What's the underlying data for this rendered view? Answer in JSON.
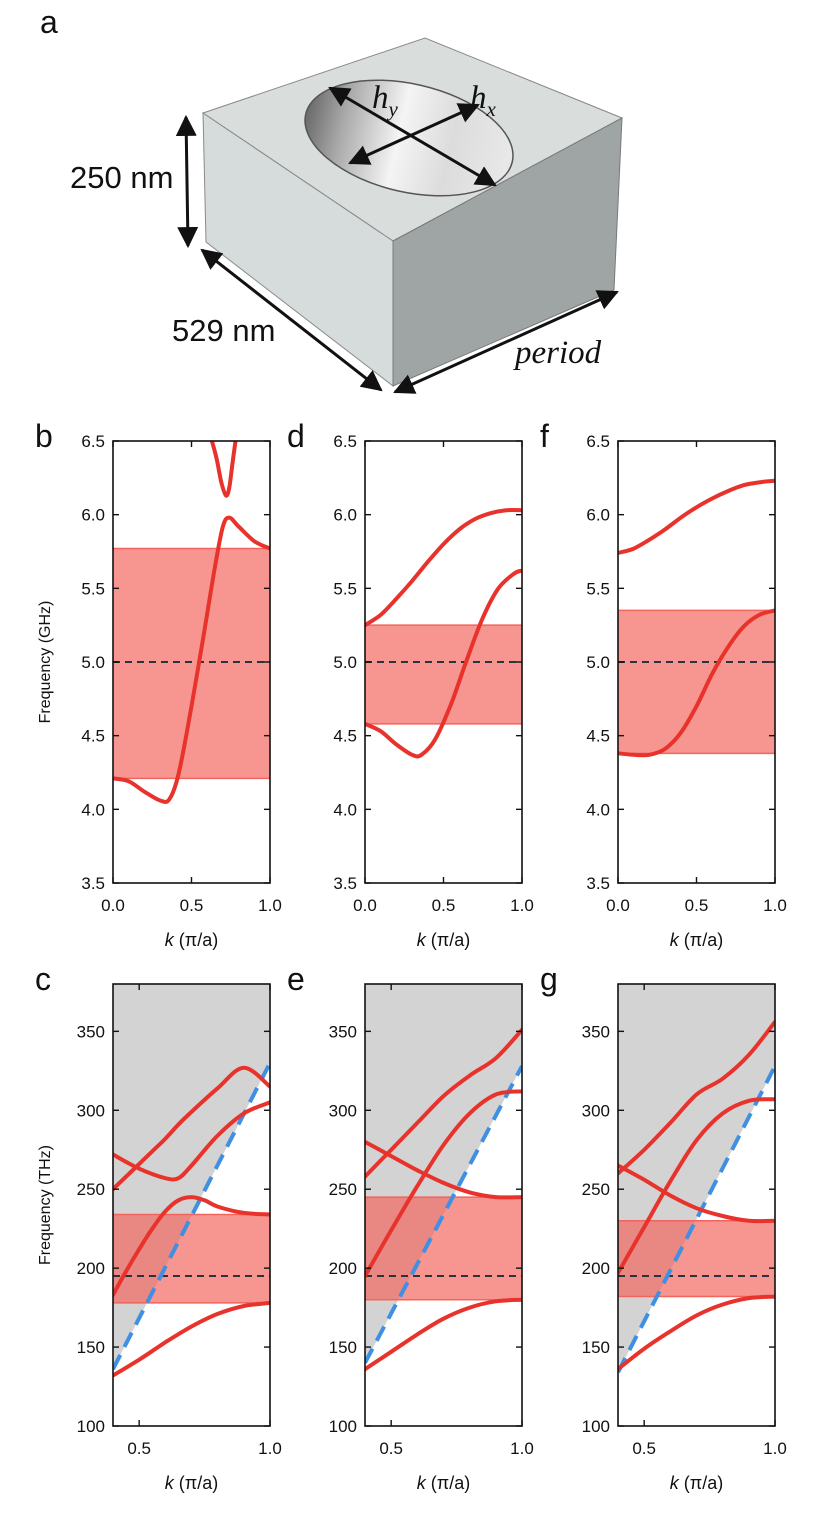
{
  "figure": {
    "panel_a": {
      "letter": "a",
      "height_label": "250 nm",
      "width_label": "529 nm",
      "period_label": "period",
      "hy_label": "h",
      "hy_sub": "y",
      "hx_label": "h",
      "hx_sub": "x"
    }
  },
  "colors": {
    "band_line": "#e8332c",
    "band_fill": "#f3645c",
    "light_line": "#3f8fe3",
    "light_cone": "#d3d3d3",
    "dashed_ref": "#2b3340"
  },
  "chart_data": [
    {
      "id": "b",
      "letter": "b",
      "type": "line",
      "ylabel": "Frequency (GHz)",
      "xlabel": "k (π/a)",
      "xlim": [
        0,
        1
      ],
      "ylim": [
        3.5,
        6.5
      ],
      "xticks": [
        "0.0",
        "0.5",
        "1.0"
      ],
      "yticks": [
        "3.5",
        "4.0",
        "4.5",
        "5.0",
        "5.5",
        "6.0",
        "6.5"
      ],
      "ytick_values": [
        3.5,
        4.0,
        4.5,
        5.0,
        5.5,
        6.0,
        6.5
      ],
      "xtick_values": [
        0,
        0.5,
        1.0
      ],
      "band_gap": [
        4.21,
        5.77
      ],
      "dashed_y": 5.0,
      "series": [
        {
          "name": "band-1",
          "x": [
            0,
            0.1,
            0.2,
            0.3,
            0.36,
            0.42,
            0.5,
            0.58,
            0.65,
            0.7,
            0.74,
            0.8,
            0.9,
            1.0
          ],
          "y": [
            4.21,
            4.19,
            4.12,
            4.06,
            4.07,
            4.25,
            4.7,
            5.2,
            5.65,
            5.92,
            5.98,
            5.92,
            5.82,
            5.77
          ]
        },
        {
          "name": "band-2",
          "x": [
            0.63,
            0.66,
            0.69,
            0.72,
            0.74,
            0.76,
            0.78
          ],
          "y": [
            6.5,
            6.38,
            6.22,
            6.13,
            6.18,
            6.34,
            6.5
          ]
        }
      ]
    },
    {
      "id": "d",
      "letter": "d",
      "type": "line",
      "ylabel": "",
      "xlabel": "k (π/a)",
      "xlim": [
        0,
        1
      ],
      "ylim": [
        3.5,
        6.5
      ],
      "xticks": [
        "0.0",
        "0.5",
        "1.0"
      ],
      "yticks": [
        "3.5",
        "4.0",
        "4.5",
        "5.0",
        "5.5",
        "6.0",
        "6.5"
      ],
      "ytick_values": [
        3.5,
        4.0,
        4.5,
        5.0,
        5.5,
        6.0,
        6.5
      ],
      "xtick_values": [
        0,
        0.5,
        1.0
      ],
      "band_gap": [
        4.58,
        5.25
      ],
      "dashed_y": 5.0,
      "series": [
        {
          "name": "band-1",
          "x": [
            0,
            0.1,
            0.2,
            0.3,
            0.36,
            0.45,
            0.55,
            0.65,
            0.75,
            0.85,
            0.95,
            1.0
          ],
          "y": [
            4.58,
            4.53,
            4.44,
            4.37,
            4.37,
            4.48,
            4.72,
            5.02,
            5.3,
            5.5,
            5.6,
            5.62
          ]
        },
        {
          "name": "band-2",
          "x": [
            0,
            0.1,
            0.2,
            0.3,
            0.4,
            0.5,
            0.6,
            0.7,
            0.8,
            0.9,
            1.0
          ],
          "y": [
            5.25,
            5.32,
            5.43,
            5.55,
            5.68,
            5.8,
            5.9,
            5.97,
            6.01,
            6.03,
            6.03
          ]
        }
      ]
    },
    {
      "id": "f",
      "letter": "f",
      "type": "line",
      "ylabel": "",
      "xlabel": "k (π/a)",
      "xlim": [
        0,
        1
      ],
      "ylim": [
        3.5,
        6.5
      ],
      "xticks": [
        "0.0",
        "0.5",
        "1.0"
      ],
      "yticks": [
        "3.5",
        "4.0",
        "4.5",
        "5.0",
        "5.5",
        "6.0",
        "6.5"
      ],
      "ytick_values": [
        3.5,
        4.0,
        4.5,
        5.0,
        5.5,
        6.0,
        6.5
      ],
      "xtick_values": [
        0,
        0.5,
        1.0
      ],
      "band_gap": [
        4.38,
        5.35
      ],
      "dashed_y": 5.0,
      "series": [
        {
          "name": "band-1",
          "x": [
            0,
            0.1,
            0.2,
            0.3,
            0.4,
            0.5,
            0.6,
            0.7,
            0.8,
            0.9,
            1.0
          ],
          "y": [
            4.38,
            4.37,
            4.37,
            4.41,
            4.52,
            4.7,
            4.92,
            5.1,
            5.24,
            5.32,
            5.35
          ]
        },
        {
          "name": "band-2",
          "x": [
            0,
            0.1,
            0.2,
            0.3,
            0.4,
            0.5,
            0.6,
            0.7,
            0.8,
            0.9,
            1.0
          ],
          "y": [
            5.74,
            5.77,
            5.83,
            5.9,
            5.98,
            6.05,
            6.11,
            6.16,
            6.2,
            6.22,
            6.23
          ]
        }
      ]
    },
    {
      "id": "c",
      "letter": "c",
      "type": "line",
      "ylabel": "Frequency (THz)",
      "xlabel": "k (π/a)",
      "xlim": [
        0.4,
        1
      ],
      "ylim": [
        100,
        380
      ],
      "xticks": [
        "0.5",
        "1.0"
      ],
      "yticks": [
        "100",
        "150",
        "200",
        "250",
        "300",
        "350"
      ],
      "ytick_values": [
        100,
        150,
        200,
        250,
        300,
        350
      ],
      "xtick_values": [
        0.5,
        1.0
      ],
      "band_gap": [
        178,
        234
      ],
      "dashed_y": 195,
      "light_line": {
        "x": [
          0.4,
          1.0
        ],
        "y": [
          136,
          330
        ]
      },
      "series": [
        {
          "name": "band-1",
          "x": [
            0.4,
            0.5,
            0.6,
            0.7,
            0.8,
            0.9,
            1.0
          ],
          "y": [
            132,
            142,
            153,
            163,
            171,
            176,
            178
          ]
        },
        {
          "name": "band-2",
          "x": [
            0.4,
            0.45,
            0.5,
            0.55,
            0.6,
            0.65,
            0.7,
            0.75,
            0.8,
            0.9,
            1.0
          ],
          "y": [
            183,
            198,
            212,
            225,
            236,
            243,
            245,
            243,
            239,
            235,
            234
          ]
        },
        {
          "name": "band-3",
          "x": [
            0.4,
            0.45,
            0.5,
            0.55,
            0.6,
            0.65,
            0.7,
            0.8,
            0.9,
            1.0
          ],
          "y": [
            250,
            258,
            266,
            274,
            282,
            291,
            299,
            314,
            327,
            315
          ]
        },
        {
          "name": "band-4",
          "x": [
            0.4,
            0.5,
            0.6,
            0.65,
            0.7,
            0.8,
            0.9,
            1.0
          ],
          "y": [
            272,
            263,
            257,
            257,
            265,
            284,
            298,
            305
          ]
        }
      ]
    },
    {
      "id": "e",
      "letter": "e",
      "type": "line",
      "ylabel": "",
      "xlabel": "k (π/a)",
      "xlim": [
        0.4,
        1
      ],
      "ylim": [
        100,
        380
      ],
      "xticks": [
        "0.5",
        "1.0"
      ],
      "yticks": [
        "100",
        "150",
        "200",
        "250",
        "300",
        "350"
      ],
      "ytick_values": [
        100,
        150,
        200,
        250,
        300,
        350
      ],
      "xtick_values": [
        0.5,
        1.0
      ],
      "band_gap": [
        180,
        245
      ],
      "dashed_y": 195,
      "light_line": {
        "x": [
          0.4,
          1.0
        ],
        "y": [
          140,
          328
        ]
      },
      "series": [
        {
          "name": "band-1",
          "x": [
            0.4,
            0.5,
            0.6,
            0.7,
            0.8,
            0.9,
            1.0
          ],
          "y": [
            136,
            147,
            158,
            168,
            175,
            179,
            180
          ]
        },
        {
          "name": "band-2",
          "x": [
            0.4,
            0.5,
            0.6,
            0.7,
            0.8,
            0.9,
            1.0
          ],
          "y": [
            195,
            224,
            252,
            278,
            298,
            310,
            312
          ]
        },
        {
          "name": "band-3",
          "x": [
            0.4,
            0.5,
            0.6,
            0.7,
            0.8,
            0.9,
            1.0
          ],
          "y": [
            258,
            275,
            292,
            309,
            322,
            333,
            351
          ]
        },
        {
          "name": "band-4",
          "x": [
            0.4,
            0.5,
            0.6,
            0.7,
            0.8,
            0.9,
            1.0
          ],
          "y": [
            280,
            271,
            262,
            254,
            248,
            245,
            245
          ]
        }
      ]
    },
    {
      "id": "g",
      "letter": "g",
      "type": "line",
      "ylabel": "",
      "xlabel": "k (π/a)",
      "xlim": [
        0.4,
        1
      ],
      "ylim": [
        100,
        380
      ],
      "xticks": [
        "0.5",
        "1.0"
      ],
      "yticks": [
        "100",
        "150",
        "200",
        "250",
        "300",
        "350"
      ],
      "ytick_values": [
        100,
        150,
        200,
        250,
        300,
        350
      ],
      "xtick_values": [
        0.5,
        1.0
      ],
      "band_gap": [
        182,
        230
      ],
      "dashed_y": 195,
      "light_line": {
        "x": [
          0.4,
          1.0
        ],
        "y": [
          134,
          328
        ]
      },
      "series": [
        {
          "name": "band-1",
          "x": [
            0.4,
            0.5,
            0.6,
            0.7,
            0.8,
            0.9,
            1.0
          ],
          "y": [
            136,
            149,
            160,
            170,
            177,
            181,
            182
          ]
        },
        {
          "name": "band-2",
          "x": [
            0.4,
            0.5,
            0.6,
            0.7,
            0.8,
            0.9,
            1.0
          ],
          "y": [
            197,
            226,
            255,
            281,
            298,
            306,
            307
          ]
        },
        {
          "name": "band-3",
          "x": [
            0.4,
            0.5,
            0.6,
            0.7,
            0.8,
            0.9,
            1.0
          ],
          "y": [
            260,
            275,
            292,
            310,
            320,
            335,
            356
          ]
        },
        {
          "name": "band-4",
          "x": [
            0.4,
            0.5,
            0.6,
            0.7,
            0.8,
            0.9,
            1.0
          ],
          "y": [
            265,
            256,
            246,
            238,
            233,
            230,
            230
          ]
        }
      ]
    }
  ]
}
